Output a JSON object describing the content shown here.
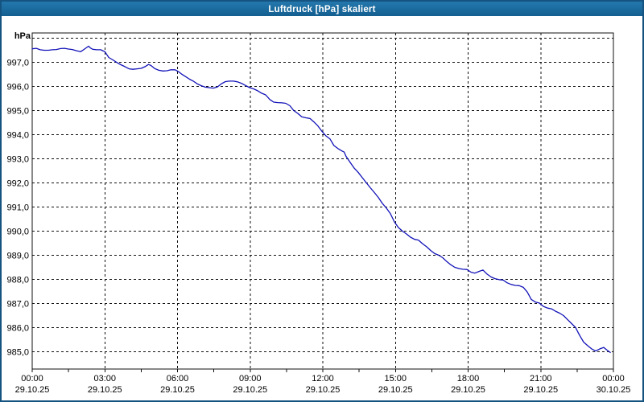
{
  "window": {
    "title": "Luftdruck [hPa] skaliert",
    "titlebar_color_top": "#2478ad",
    "titlebar_color_bottom": "#145f90",
    "border_color": "#155481",
    "background_color": "#ffffff"
  },
  "chart_data": {
    "type": "line",
    "title": "Luftdruck [hPa] skaliert",
    "unit_label": "hPa",
    "grid": "dashed",
    "legend": "none",
    "grid_color": "#111111",
    "x_axis": {
      "range_hours": [
        0,
        24
      ],
      "major_tick_interval_hours": 3,
      "minor_tick_interval_hours": 1.5,
      "major_ticks": [
        {
          "hour": 0,
          "time": "00:00",
          "date": "29.10.25"
        },
        {
          "hour": 3,
          "time": "03:00",
          "date": "29.10.25"
        },
        {
          "hour": 6,
          "time": "06:00",
          "date": "29.10.25"
        },
        {
          "hour": 9,
          "time": "09:00",
          "date": "29.10.25"
        },
        {
          "hour": 12,
          "time": "12:00",
          "date": "29.10.25"
        },
        {
          "hour": 15,
          "time": "15:00",
          "date": "29.10.25"
        },
        {
          "hour": 18,
          "time": "18:00",
          "date": "29.10.25"
        },
        {
          "hour": 21,
          "time": "21:00",
          "date": "29.10.25"
        },
        {
          "hour": 24,
          "time": "00:00",
          "date": "30.10.25"
        }
      ]
    },
    "y_axis": {
      "unit": "hPa",
      "frame_range": [
        984.2,
        998.2
      ],
      "gridline_interval": 1.0,
      "gridlines": [
        {
          "value": 998,
          "label": ""
        },
        {
          "value": 997,
          "label": "997,0"
        },
        {
          "value": 996,
          "label": "996,0"
        },
        {
          "value": 995,
          "label": "995,0"
        },
        {
          "value": 994,
          "label": "994,0"
        },
        {
          "value": 993,
          "label": "993,0"
        },
        {
          "value": 992,
          "label": "992,0"
        },
        {
          "value": 991,
          "label": "991,0"
        },
        {
          "value": 990,
          "label": "990,0"
        },
        {
          "value": 989,
          "label": "989,0"
        },
        {
          "value": 988,
          "label": "988,0"
        },
        {
          "value": 987,
          "label": "987,0"
        },
        {
          "value": 986,
          "label": "986,0"
        },
        {
          "value": 985,
          "label": "985,0"
        }
      ]
    },
    "series": [
      {
        "name": "Luftdruck",
        "color": "#1212b8",
        "points": [
          [
            0.0,
            997.56
          ],
          [
            0.17,
            997.58
          ],
          [
            0.33,
            997.52
          ],
          [
            0.5,
            997.5
          ],
          [
            0.67,
            997.5
          ],
          [
            0.83,
            997.52
          ],
          [
            1.0,
            997.53
          ],
          [
            1.17,
            997.57
          ],
          [
            1.33,
            997.58
          ],
          [
            1.5,
            997.55
          ],
          [
            1.66,
            997.53
          ],
          [
            1.83,
            997.48
          ],
          [
            2.0,
            997.44
          ],
          [
            2.16,
            997.55
          ],
          [
            2.33,
            997.67
          ],
          [
            2.41,
            997.59
          ],
          [
            2.5,
            997.54
          ],
          [
            2.66,
            997.52
          ],
          [
            2.83,
            997.52
          ],
          [
            3.0,
            997.44
          ],
          [
            3.16,
            997.2
          ],
          [
            3.33,
            997.1
          ],
          [
            3.5,
            996.99
          ],
          [
            3.66,
            996.9
          ],
          [
            3.83,
            996.82
          ],
          [
            4.0,
            996.73
          ],
          [
            4.16,
            996.71
          ],
          [
            4.33,
            996.73
          ],
          [
            4.5,
            996.75
          ],
          [
            4.66,
            996.82
          ],
          [
            4.8,
            996.91
          ],
          [
            4.9,
            996.87
          ],
          [
            5.06,
            996.74
          ],
          [
            5.23,
            996.67
          ],
          [
            5.4,
            996.64
          ],
          [
            5.56,
            996.65
          ],
          [
            5.73,
            996.69
          ],
          [
            5.9,
            996.69
          ],
          [
            6.03,
            996.62
          ],
          [
            6.16,
            996.52
          ],
          [
            6.33,
            996.41
          ],
          [
            6.5,
            996.3
          ],
          [
            6.65,
            996.22
          ],
          [
            6.81,
            996.11
          ],
          [
            6.98,
            996.03
          ],
          [
            7.15,
            995.97
          ],
          [
            7.31,
            995.95
          ],
          [
            7.48,
            995.93
          ],
          [
            7.65,
            995.98
          ],
          [
            7.81,
            996.11
          ],
          [
            7.98,
            996.2
          ],
          [
            8.14,
            996.22
          ],
          [
            8.31,
            996.22
          ],
          [
            8.48,
            996.19
          ],
          [
            8.64,
            996.13
          ],
          [
            8.81,
            996.04
          ],
          [
            8.98,
            995.95
          ],
          [
            9.14,
            995.9
          ],
          [
            9.31,
            995.82
          ],
          [
            9.47,
            995.72
          ],
          [
            9.64,
            995.65
          ],
          [
            9.81,
            995.46
          ],
          [
            9.97,
            995.35
          ],
          [
            10.14,
            995.33
          ],
          [
            10.31,
            995.32
          ],
          [
            10.47,
            995.3
          ],
          [
            10.64,
            995.2
          ],
          [
            10.8,
            995.0
          ],
          [
            10.97,
            994.88
          ],
          [
            11.13,
            994.74
          ],
          [
            11.3,
            994.7
          ],
          [
            11.47,
            994.67
          ],
          [
            11.63,
            994.53
          ],
          [
            11.8,
            994.36
          ],
          [
            11.97,
            994.13
          ],
          [
            12.13,
            993.95
          ],
          [
            12.3,
            993.82
          ],
          [
            12.46,
            993.55
          ],
          [
            12.63,
            993.42
          ],
          [
            12.8,
            993.32
          ],
          [
            12.88,
            993.28
          ],
          [
            12.96,
            993.1
          ],
          [
            13.13,
            992.85
          ],
          [
            13.3,
            992.61
          ],
          [
            13.46,
            992.44
          ],
          [
            13.63,
            992.22
          ],
          [
            13.8,
            992.0
          ],
          [
            13.96,
            991.8
          ],
          [
            14.13,
            991.6
          ],
          [
            14.29,
            991.4
          ],
          [
            14.46,
            991.15
          ],
          [
            14.63,
            990.95
          ],
          [
            14.79,
            990.73
          ],
          [
            14.96,
            990.38
          ],
          [
            15.12,
            990.15
          ],
          [
            15.29,
            990.0
          ],
          [
            15.46,
            989.88
          ],
          [
            15.62,
            989.75
          ],
          [
            15.79,
            989.66
          ],
          [
            15.95,
            989.63
          ],
          [
            16.12,
            989.48
          ],
          [
            16.29,
            989.35
          ],
          [
            16.45,
            989.2
          ],
          [
            16.62,
            989.07
          ],
          [
            16.79,
            989.0
          ],
          [
            16.95,
            988.9
          ],
          [
            17.12,
            988.74
          ],
          [
            17.28,
            988.61
          ],
          [
            17.45,
            988.5
          ],
          [
            17.62,
            988.45
          ],
          [
            17.78,
            988.42
          ],
          [
            17.95,
            988.41
          ],
          [
            18.12,
            988.3
          ],
          [
            18.28,
            988.26
          ],
          [
            18.45,
            988.33
          ],
          [
            18.61,
            988.39
          ],
          [
            18.78,
            988.22
          ],
          [
            18.95,
            988.1
          ],
          [
            19.11,
            988.03
          ],
          [
            19.28,
            987.99
          ],
          [
            19.45,
            987.97
          ],
          [
            19.61,
            987.86
          ],
          [
            19.78,
            987.79
          ],
          [
            19.95,
            987.75
          ],
          [
            20.11,
            987.74
          ],
          [
            20.28,
            987.67
          ],
          [
            20.44,
            987.48
          ],
          [
            20.61,
            987.17
          ],
          [
            20.78,
            987.06
          ],
          [
            20.94,
            987.02
          ],
          [
            21.11,
            986.88
          ],
          [
            21.28,
            986.81
          ],
          [
            21.44,
            986.78
          ],
          [
            21.61,
            986.68
          ],
          [
            21.78,
            986.6
          ],
          [
            21.94,
            986.5
          ],
          [
            22.11,
            986.33
          ],
          [
            22.27,
            986.17
          ],
          [
            22.44,
            986.0
          ],
          [
            22.54,
            985.8
          ],
          [
            22.64,
            985.62
          ],
          [
            22.77,
            985.4
          ],
          [
            22.94,
            985.25
          ],
          [
            23.1,
            985.12
          ],
          [
            23.27,
            985.03
          ],
          [
            23.44,
            985.12
          ],
          [
            23.6,
            985.18
          ],
          [
            23.72,
            985.08
          ],
          [
            23.87,
            984.97
          ]
        ]
      }
    ]
  }
}
